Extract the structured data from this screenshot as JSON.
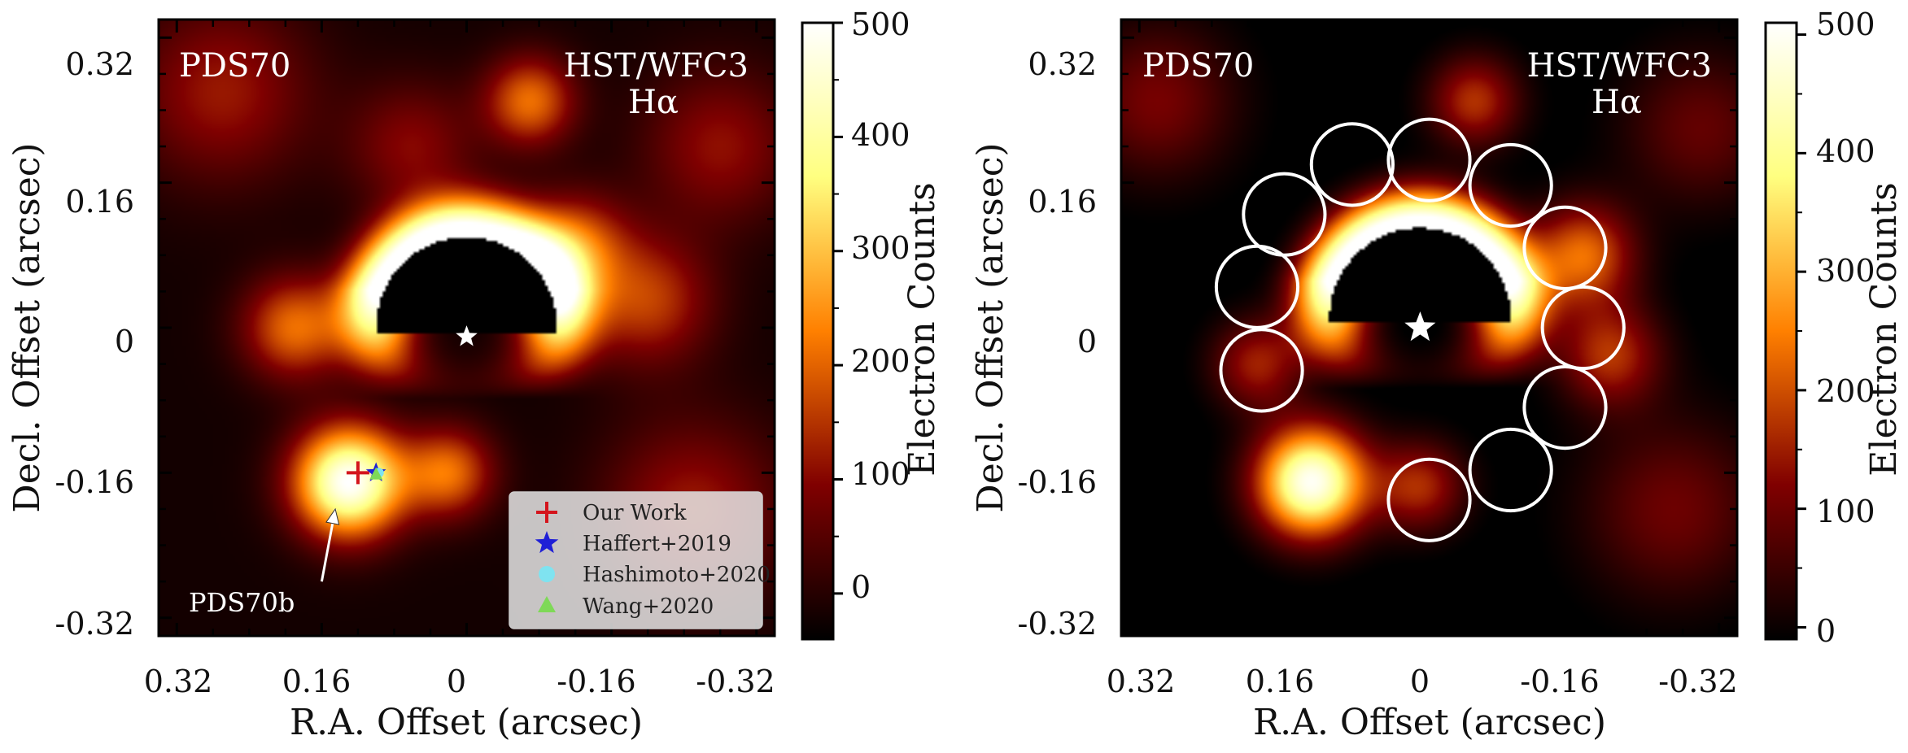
{
  "chart_data": [
    {
      "type": "heatmap",
      "target": "PDS70",
      "instrument": "HST/WFC3",
      "filter": "Hα",
      "xlabel": "R.A. Offset (arcsec)",
      "ylabel": "Decl. Offset (arcsec)",
      "xlim": [
        0.34,
        -0.34
      ],
      "ylim": [
        -0.34,
        0.34
      ],
      "xticks": [
        "0.32",
        "0.16",
        "0",
        "-0.16",
        "-0.32"
      ],
      "yticks": [
        "0.32",
        "0.16",
        "0",
        "-0.16",
        "-0.32"
      ],
      "colorbar": {
        "label": "Electron Counts",
        "range": [
          -40,
          500
        ],
        "ticks": [
          "0",
          "100",
          "200",
          "300",
          "400",
          "500"
        ],
        "colormap": "afmhot"
      },
      "blobs": [
        {
          "x": 0.13,
          "y": -0.17,
          "amp": 520,
          "sigma": 0.042
        },
        {
          "x": 0.02,
          "y": -0.16,
          "amp": 230,
          "sigma": 0.035
        },
        {
          "x": 0.19,
          "y": 0.0,
          "amp": 230,
          "sigma": 0.04
        },
        {
          "x": -0.07,
          "y": 0.25,
          "amp": 230,
          "sigma": 0.035
        },
        {
          "x": -0.12,
          "y": 0.09,
          "amp": 210,
          "sigma": 0.04
        },
        {
          "x": -0.2,
          "y": 0.03,
          "amp": 180,
          "sigma": 0.05
        },
        {
          "x": 0.06,
          "y": 0.2,
          "amp": 120,
          "sigma": 0.05
        },
        {
          "x": 0.27,
          "y": 0.26,
          "amp": 140,
          "sigma": 0.07
        },
        {
          "x": -0.25,
          "y": -0.2,
          "amp": 140,
          "sigma": 0.07
        },
        {
          "x": -0.28,
          "y": 0.2,
          "amp": 130,
          "sigma": 0.06
        }
      ],
      "ring": {
        "radius": 0.1,
        "width": 0.03,
        "peak": 580
      },
      "mask_radius": 0.1,
      "star": {
        "x": 0.0,
        "y": -0.01
      },
      "markers": [
        {
          "label": "Our Work",
          "x": 0.12,
          "y": -0.16,
          "shape": "plus",
          "color": "#d4141c"
        },
        {
          "label": "Haffert+2019",
          "x": 0.1,
          "y": -0.16,
          "shape": "star",
          "color": "#1f1fd6"
        },
        {
          "label": "Hashimoto+2020",
          "x": 0.095,
          "y": -0.16,
          "shape": "circle",
          "color": "#7fe3f0"
        },
        {
          "label": "Wang+2020",
          "x": 0.1,
          "y": -0.162,
          "shape": "triangle",
          "color": "#7ed957"
        }
      ],
      "annotation": {
        "text": "PDS70b",
        "tail": [
          0.16,
          -0.28
        ],
        "head": [
          0.145,
          -0.2
        ]
      },
      "legend_position": "lower-right"
    },
    {
      "type": "heatmap",
      "target": "PDS70",
      "instrument": "HST/WFC3",
      "filter": "Hα",
      "xlabel": "R.A. Offset (arcsec)",
      "ylabel": "Decl. Offset (arcsec)",
      "xlim": [
        0.34,
        -0.34
      ],
      "ylim": [
        -0.34,
        0.34
      ],
      "xticks": [
        "0.32",
        "0.16",
        "0",
        "-0.16",
        "-0.32"
      ],
      "yticks": [
        "0.32",
        "0.16",
        "0",
        "-0.16",
        "-0.32"
      ],
      "colorbar": {
        "label": "Electron Counts",
        "range": [
          -10,
          510
        ],
        "ticks": [
          "0",
          "100",
          "200",
          "300",
          "400",
          "500"
        ],
        "colormap": "afmhot"
      },
      "blobs": [
        {
          "x": 0.13,
          "y": -0.17,
          "amp": 520,
          "sigma": 0.042
        },
        {
          "x": 0.01,
          "y": -0.175,
          "amp": 180,
          "sigma": 0.035
        },
        {
          "x": 0.19,
          "y": -0.04,
          "amp": 170,
          "sigma": 0.035
        },
        {
          "x": -0.05,
          "y": 0.25,
          "amp": 190,
          "sigma": 0.035
        },
        {
          "x": -0.17,
          "y": 0.08,
          "amp": 250,
          "sigma": 0.04
        },
        {
          "x": -0.2,
          "y": -0.03,
          "amp": 190,
          "sigma": 0.04
        },
        {
          "x": 0.3,
          "y": 0.25,
          "amp": 130,
          "sigma": 0.06
        },
        {
          "x": -0.27,
          "y": -0.2,
          "amp": 120,
          "sigma": 0.07
        },
        {
          "x": -0.3,
          "y": 0.22,
          "amp": 110,
          "sigma": 0.06
        }
      ],
      "ring": {
        "radius": 0.1,
        "width": 0.03,
        "peak": 580
      },
      "mask_radius": 0.1,
      "star": {
        "x": 0.01,
        "y": 0.0
      },
      "apertures": [
        {
          "x": 0.0,
          "y": 0.185
        },
        {
          "x": 0.085,
          "y": 0.18
        },
        {
          "x": 0.16,
          "y": 0.125
        },
        {
          "x": 0.19,
          "y": 0.045
        },
        {
          "x": 0.185,
          "y": -0.047
        },
        {
          "x": -0.09,
          "y": 0.157
        },
        {
          "x": -0.15,
          "y": 0.088
        },
        {
          "x": -0.17,
          "y": 0.0
        },
        {
          "x": -0.15,
          "y": -0.088
        },
        {
          "x": -0.09,
          "y": -0.157
        },
        {
          "x": 0.0,
          "y": -0.19
        }
      ],
      "aperture_radius": 0.045
    }
  ]
}
